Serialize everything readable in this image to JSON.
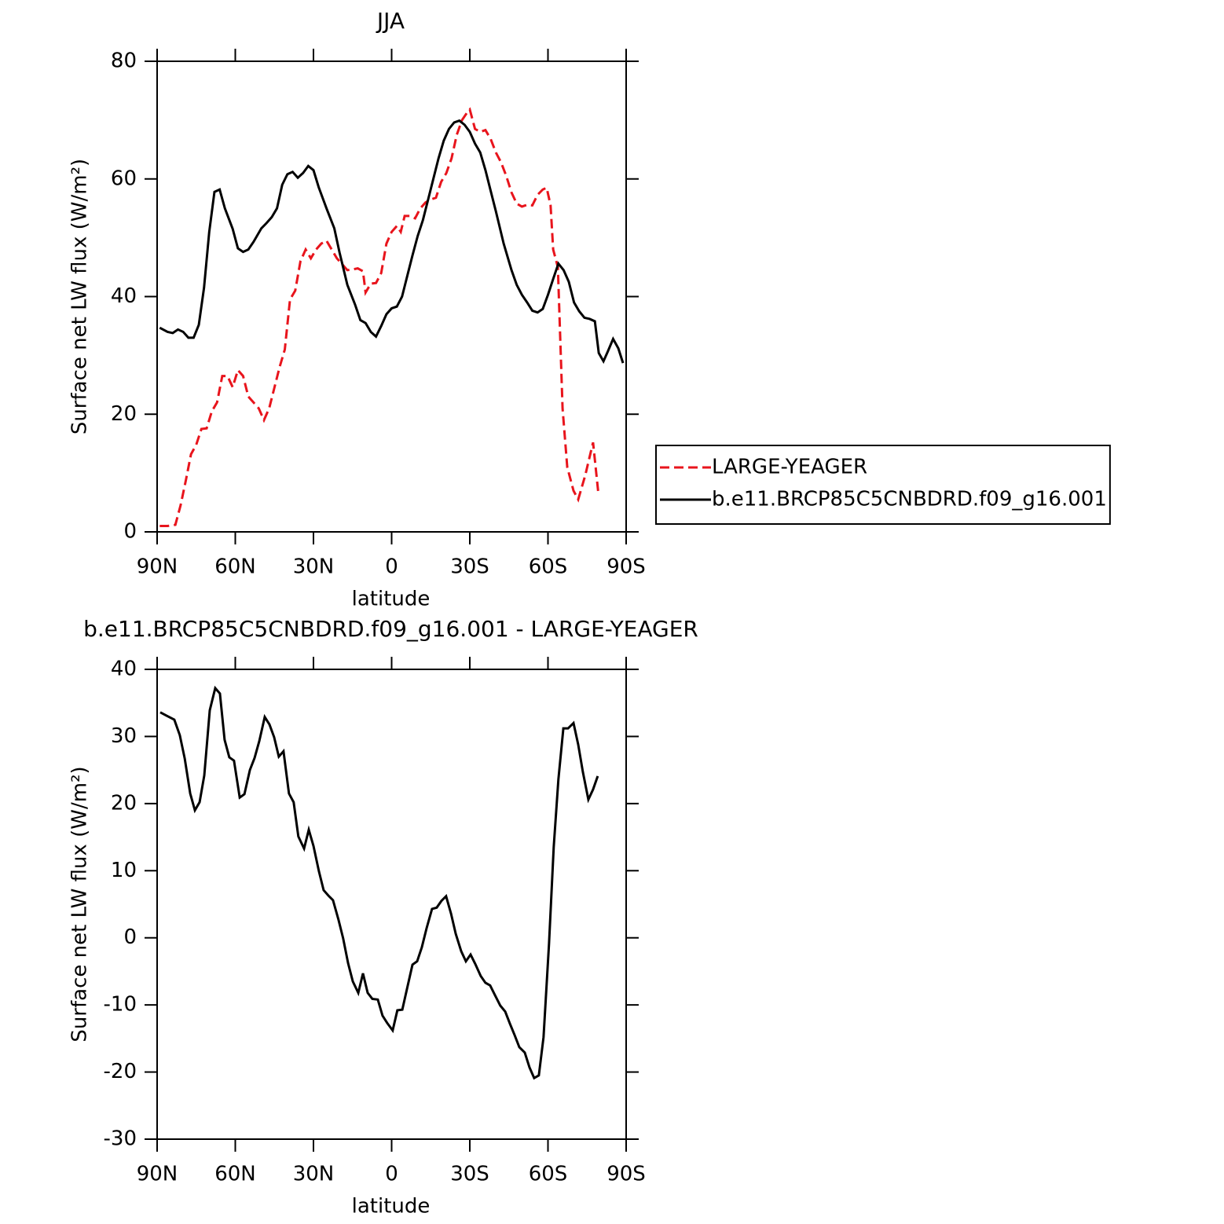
{
  "chart_data": [
    {
      "type": "line",
      "title": "JJA",
      "xlabel": "latitude",
      "ylabel": "Surface net LW flux (W/m²)",
      "xlim": [
        90,
        -90
      ],
      "xticks": [
        {
          "value": 90,
          "label": "90N"
        },
        {
          "value": 60,
          "label": "60N"
        },
        {
          "value": 30,
          "label": "30N"
        },
        0,
        {
          "value": -30,
          "label": "30S"
        },
        {
          "value": -60,
          "label": "60S"
        },
        {
          "value": -90,
          "label": "90S"
        }
      ],
      "ylim": [
        0,
        80
      ],
      "yticks": [
        0,
        20,
        40,
        60,
        80
      ],
      "legend": "right",
      "series": [
        {
          "name": "LARGE-YEAGER",
          "color": "#e8141c",
          "dash": "dashed",
          "x": [
            89,
            86,
            83,
            81,
            79,
            77,
            75,
            73,
            71,
            69,
            67,
            65,
            63,
            61,
            59,
            57,
            55,
            53,
            51,
            49,
            47,
            45,
            43,
            41,
            39,
            37,
            35,
            33,
            31,
            29,
            27,
            25,
            23,
            21,
            19,
            17,
            15,
            13,
            11,
            10,
            8,
            6,
            4,
            2,
            0,
            -2,
            -3.5,
            -5,
            -7,
            -9,
            -11,
            -13,
            -15,
            -17,
            -19,
            -21,
            -23,
            -25,
            -27,
            -29,
            -30,
            -32,
            -34,
            -36,
            -38,
            -40,
            -42,
            -44,
            -46,
            -48,
            -50,
            -52,
            -54,
            -56,
            -58,
            -59.5,
            -61,
            -62,
            -63.8,
            -65.6,
            -67.4,
            -69.8,
            -71.6,
            -74.3,
            -77.3,
            -79.4
          ],
          "values": [
            1,
            1,
            1.2,
            4.5,
            8.7,
            13.2,
            14.8,
            17.5,
            17.6,
            20.5,
            22,
            26.5,
            26.5,
            24.6,
            27.5,
            26.5,
            23,
            22,
            21,
            19,
            21,
            24.5,
            28,
            31,
            39.5,
            41,
            46,
            48,
            46.5,
            48,
            49,
            49.5,
            48,
            46.5,
            45.5,
            44.5,
            44.6,
            44.8,
            44.3,
            40.7,
            42.2,
            42.3,
            44,
            49,
            51,
            52,
            51,
            53.7,
            53.7,
            53.3,
            55,
            56,
            56.5,
            56.8,
            59.5,
            61,
            63.5,
            67.5,
            70,
            71.3,
            71.8,
            68.5,
            68,
            68.3,
            66.8,
            64.5,
            62.8,
            60.5,
            57.7,
            55.8,
            55.3,
            55.6,
            55.5,
            57.3,
            58.2,
            58.5,
            55.5,
            48,
            45,
            21,
            11,
            7,
            5.5,
            9.6,
            15.2,
            6.3
          ]
        },
        {
          "name": "b.e11.BRCP85C5CNBDRD.f09_g16.001",
          "color": "#000000",
          "dash": "solid",
          "x": [
            89,
            86,
            84,
            82,
            80,
            78,
            76,
            74,
            72,
            70,
            68,
            66,
            64,
            61,
            59,
            57,
            55,
            53,
            50,
            48,
            46,
            44,
            42,
            40,
            38,
            36,
            34,
            32,
            30,
            28,
            25,
            22,
            20,
            17,
            14,
            12,
            10,
            8,
            6,
            4,
            2,
            0,
            -2,
            -4,
            -6,
            -8,
            -10,
            -12,
            -14,
            -16,
            -18,
            -20,
            -22,
            -24,
            -26,
            -28,
            -30,
            -32,
            -34,
            -36,
            -38,
            -40,
            -43,
            -46,
            -48,
            -50,
            -52,
            -54,
            -56,
            -58,
            -60,
            -62,
            -64,
            -66,
            -68,
            -70,
            -72,
            -74,
            -76,
            -78,
            -79.5,
            -81.3,
            -83,
            -85,
            -87,
            -88.8
          ],
          "values": [
            34.7,
            34.0,
            33.8,
            34.4,
            34.0,
            33.0,
            33.0,
            35.2,
            41.5,
            51,
            57.8,
            58.2,
            55,
            51.5,
            48.2,
            47.6,
            48,
            49.3,
            51.6,
            52.5,
            53.5,
            55,
            59,
            60.8,
            61.2,
            60.2,
            61,
            62.2,
            61.5,
            58.6,
            55,
            51.6,
            47.5,
            42,
            38.6,
            36,
            35.5,
            34,
            33.2,
            35,
            37,
            38,
            38.3,
            40,
            43.5,
            47,
            50.3,
            53,
            56.5,
            60,
            63.5,
            66.5,
            68.5,
            69.6,
            69.9,
            69.2,
            68,
            66,
            64.5,
            61.5,
            58,
            54.5,
            49,
            44.5,
            42,
            40.3,
            39,
            37.6,
            37.3,
            37.9,
            40.3,
            43,
            45.6,
            44.5,
            42.5,
            39,
            37.5,
            36.4,
            36.2,
            35.8,
            30.4,
            29,
            30.7,
            32.8,
            31.2,
            28.7
          ]
        }
      ]
    },
    {
      "type": "line",
      "title": "b.e11.BRCP85C5CNBDRD.f09_g16.001 - LARGE-YEAGER",
      "xlabel": "latitude",
      "ylabel": "Surface net LW flux (W/m²)",
      "xlim": [
        90,
        -90
      ],
      "xticks": [
        {
          "value": 90,
          "label": "90N"
        },
        {
          "value": 60,
          "label": "60N"
        },
        {
          "value": 30,
          "label": "30N"
        },
        0,
        {
          "value": -30,
          "label": "30S"
        },
        {
          "value": -60,
          "label": "60S"
        },
        {
          "value": -90,
          "label": "90S"
        }
      ],
      "ylim": [
        -30,
        40
      ],
      "yticks": [
        -30,
        -20,
        -10,
        0,
        10,
        20,
        30,
        40
      ],
      "series": [
        {
          "color": "#000000",
          "dash": "solid",
          "x": [
            88.8,
            86.4,
            83.4,
            81.3,
            79.4,
            77.3,
            75.5,
            73.7,
            71.9,
            69.8,
            67.7,
            65.9,
            64.1,
            62.3,
            60.5,
            58.3,
            56.5,
            54.4,
            52.6,
            50.8,
            48.7,
            46.9,
            45.1,
            43.3,
            41.5,
            39.4,
            37.6,
            35.8,
            33.6,
            31.8,
            30,
            27.9,
            26.1,
            24.3,
            22.5,
            20.4,
            18.6,
            16.7,
            14.9,
            12.8,
            11,
            9.2,
            7.4,
            5.3,
            3.5,
            1.7,
            -0.4,
            -2.2,
            -4.1,
            -5.9,
            -8,
            -9.8,
            -11.6,
            -13.4,
            -15.5,
            -17.3,
            -19.1,
            -20.9,
            -22.8,
            -24.6,
            -26.7,
            -28.5,
            -30.3,
            -32.1,
            -34.2,
            -36,
            -37.8,
            -39.6,
            -41.7,
            -43.6,
            -45.4,
            -47.2,
            -49,
            -51.1,
            -52.9,
            -54.7,
            -56.5,
            -58.3,
            -60.4,
            -62.2,
            -64,
            -65.9,
            -67.7,
            -69.8,
            -71.6,
            -73.4,
            -75.5,
            -77.3,
            -79.1
          ],
          "values": [
            33.6,
            33.1,
            32.5,
            30.2,
            26.7,
            21.5,
            19,
            20.2,
            24.2,
            33.9,
            37.2,
            36.4,
            29.5,
            26.9,
            26.4,
            20.9,
            21.4,
            25,
            26.8,
            29.3,
            32.9,
            31.8,
            29.9,
            27,
            27.8,
            21.5,
            20.2,
            15.1,
            13.3,
            16.1,
            13.7,
            9.9,
            7.1,
            6.3,
            5.6,
            2.7,
            -0.1,
            -3.8,
            -6.5,
            -8.2,
            -5.3,
            -8.2,
            -9.1,
            -9.2,
            -11.6,
            -12.7,
            -13.8,
            -10.8,
            -10.7,
            -7.6,
            -4,
            -3.5,
            -1.4,
            1.4,
            4.3,
            4.5,
            5.5,
            6.2,
            3.6,
            0.6,
            -2,
            -3.5,
            -2.5,
            -3.9,
            -5.7,
            -6.7,
            -7.1,
            -8.5,
            -10.1,
            -11,
            -12.8,
            -14.5,
            -16.3,
            -17.1,
            -19.3,
            -20.9,
            -20.5,
            -14.8,
            -0.9,
            13.5,
            23.6,
            31.2,
            31.2,
            32,
            28.8,
            24.7,
            20.6,
            22.1,
            24.1
          ]
        }
      ]
    }
  ]
}
